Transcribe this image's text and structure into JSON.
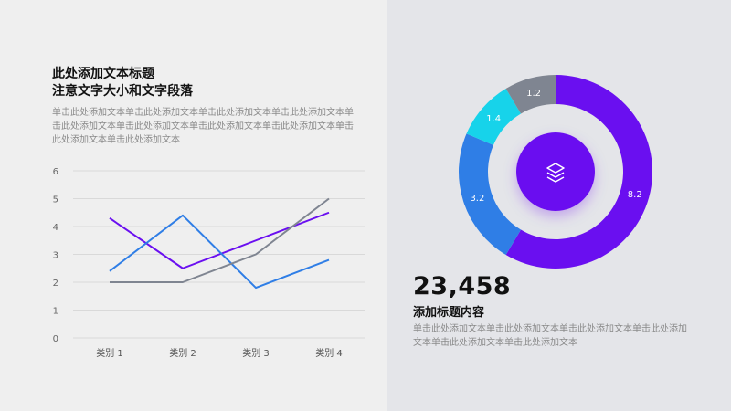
{
  "header": {
    "title_line1": "此处添加文本标题",
    "title_line2": "注意文字大小和文字段落",
    "description": "单击此处添加文本单击此处添加文本单击此处添加文本单击此处添加文本单击此处添加文本单击此处添加文本单击此处添加文本单击此处添加文本单击此处添加文本单击此处添加文本"
  },
  "stat": {
    "value": "23,458",
    "title": "添加标题内容",
    "description": "单击此处添加文本单击此处添加文本单击此处添加文本单击此处添加文本单击此处添加文本单击此处添加文本"
  },
  "colors": {
    "purple": "#6a0ff0",
    "blue": "#2f7ee6",
    "gray": "#7f8591",
    "cyan": "#17d3ea",
    "center_circle": "#6a0ff0",
    "center_icon": "layers-icon"
  },
  "chart_data": [
    {
      "type": "line",
      "categories": [
        "类别 1",
        "类别 2",
        "类别 3",
        "类别 4"
      ],
      "yticks": [
        "0",
        "1",
        "2",
        "3",
        "4",
        "5",
        "6"
      ],
      "ylim": [
        0,
        6
      ],
      "grid": true,
      "series": [
        {
          "values": [
            4.3,
            2.5,
            3.5,
            4.5
          ],
          "color": "#6a0ff0"
        },
        {
          "values": [
            2.4,
            4.4,
            1.8,
            2.8
          ],
          "color": "#2f7ee6"
        },
        {
          "values": [
            2.0,
            2.0,
            3.0,
            5.0
          ],
          "color": "#7f8591"
        }
      ]
    },
    {
      "type": "pie",
      "donut": true,
      "slices": [
        {
          "value": 8.2,
          "label": "8.2",
          "color": "#6a0ff0"
        },
        {
          "value": 3.2,
          "label": "3.2",
          "color": "#2f7ee6"
        },
        {
          "value": 1.4,
          "label": "1.4",
          "color": "#17d3ea"
        },
        {
          "value": 1.2,
          "label": "1.2",
          "color": "#7f8591"
        }
      ]
    }
  ]
}
